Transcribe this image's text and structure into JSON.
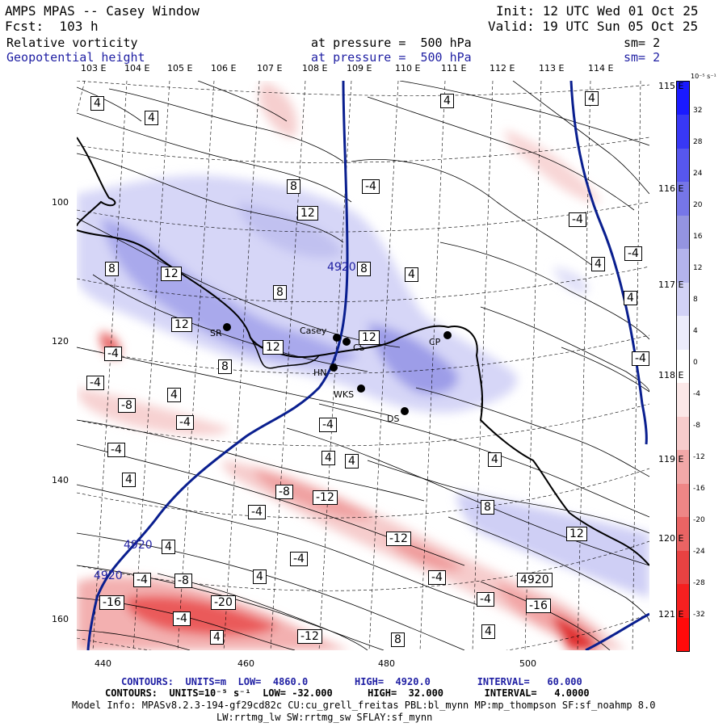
{
  "header": {
    "title": "AMPS MPAS -- Casey Window",
    "init": "Init: 12 UTC Wed 01 Oct 25",
    "fcst": "Fcst:  103 h",
    "valid": "Valid: 19 UTC Sun 05 Oct 25",
    "var1": "Relative vorticity",
    "var1_level": "at pressure =  500 hPa",
    "var1_sm": "sm= 2",
    "var2": "Geopotential height",
    "var2_level": "at pressure =  500 hPa",
    "var2_sm": "sm= 2"
  },
  "axes": {
    "top_lon": [
      "103 E",
      "104 E",
      "105 E",
      "106 E",
      "107 E",
      "108 E",
      "109 E",
      "110 E",
      "111 E",
      "112 E",
      "113 E",
      "114 E"
    ],
    "right_lon": [
      "115 E",
      "116 E",
      "117 E",
      "118 E",
      "119 E",
      "120 E",
      "121 E"
    ],
    "left_y": [
      "100",
      "120",
      "140",
      "160"
    ],
    "bottom_x": [
      "440",
      "460",
      "480",
      "500"
    ]
  },
  "colorbar": {
    "unit": "10⁻⁵ s⁻¹",
    "labels": [
      "32",
      "28",
      "24",
      "20",
      "16",
      "12",
      "8",
      "4",
      "0",
      "-4",
      "-8",
      "-12",
      "-16",
      "-20",
      "-24",
      "-28",
      "-32"
    ],
    "colors": [
      "#1a1aff",
      "#3838f5",
      "#5757ee",
      "#7676e8",
      "#9494e0",
      "#b3b3ec",
      "#d2d2f6",
      "#ececfb",
      "#ffffff",
      "#fbe8e8",
      "#f7cccc",
      "#f2a8a8",
      "#ee8686",
      "#ea6464",
      "#e84242",
      "#f52020",
      "#ff0a0a"
    ]
  },
  "stations": [
    {
      "name": "Casey"
    },
    {
      "name": "SR"
    },
    {
      "name": "CS"
    },
    {
      "name": "HN"
    },
    {
      "name": "WKS"
    },
    {
      "name": "DS"
    },
    {
      "name": "CP"
    }
  ],
  "contour_labels": [
    "4",
    "4",
    "4",
    "8",
    "-4",
    "12",
    "4",
    "-4",
    "4",
    "-4",
    "8",
    "12",
    "4920",
    "8",
    "4",
    "8",
    "4",
    "-4",
    "12",
    "12",
    "12",
    "-4",
    "8",
    "-4",
    "4",
    "-8",
    "-4",
    "-4",
    "4",
    "4",
    "-4",
    "4",
    "4",
    "-8",
    "-12",
    "8",
    "-4",
    "-12",
    "12",
    "4920",
    "4",
    "-4",
    "-4",
    "4",
    "4920",
    "-4",
    "-8",
    "-16",
    "-20",
    "-4",
    "-4",
    "4",
    "-12",
    "8",
    "4",
    "-8",
    "-16",
    "4",
    "8"
  ],
  "footer": {
    "line1": "CONTOURS:  UNITS=m  LOW=  4860.0        HIGH=  4920.0        INTERVAL=   60.000",
    "line2": "CONTOURS:  UNITS=10⁻⁵ s⁻¹  LOW= -32.000      HIGH=  32.000       INTERVAL=   4.0000",
    "line3": "Model Info: MPASv8.2.3-194-gf29cd82c CU:cu_grell_freitas PBL:bl_mynn MP:mp_thompson SF:sf_noahmp 8.0",
    "line4": "LW:rrtmg_lw SW:rrtmg_sw SFLAY:sf_mynn"
  }
}
